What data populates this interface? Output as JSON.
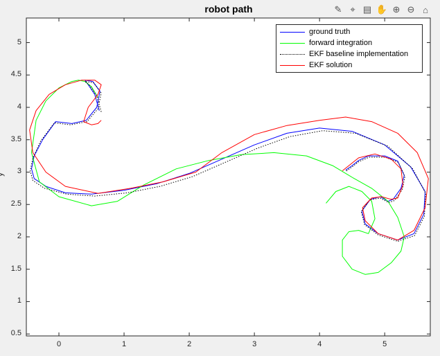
{
  "window": {
    "title": "robot path"
  },
  "toolbar": {
    "icons": [
      "edit-icon",
      "data-cursor-icon",
      "brush-icon",
      "pan-icon",
      "zoom-in-icon",
      "zoom-out-icon",
      "home-icon"
    ]
  },
  "chart_data": {
    "type": "line",
    "title": "robot path",
    "xlabel": "",
    "ylabel": "y",
    "xlim": [
      -0.5,
      5.7
    ],
    "ylim": [
      0.47,
      5.38
    ],
    "xticks": [
      "0",
      "1",
      "2",
      "3",
      "4",
      "5"
    ],
    "yticks": [
      "0.5",
      "1",
      "1.5",
      "2",
      "2.5",
      "3",
      "3.5",
      "4",
      "4.5",
      "5"
    ],
    "legend_position": "top-right",
    "grid": false,
    "series": [
      {
        "name": "ground truth",
        "color": "#0000ff",
        "style": "solid",
        "x": [
          0.62,
          0.55,
          0.45,
          0.4,
          0.52,
          0.63,
          0.58,
          0.42,
          0.2,
          -0.05,
          -0.25,
          -0.38,
          -0.42,
          -0.38,
          -0.2,
          0.1,
          0.5,
          1.0,
          1.5,
          2.0,
          2.5,
          3.0,
          3.5,
          4.0,
          4.5,
          5.0,
          5.4,
          5.62,
          5.6,
          5.45,
          5.2,
          4.9,
          4.7,
          4.65,
          4.78,
          4.93,
          5.05,
          5.13,
          5.25,
          5.3,
          5.2,
          5.0,
          4.75,
          4.6,
          4.5,
          4.4
        ],
        "y": [
          3.95,
          4.2,
          4.35,
          4.42,
          4.4,
          4.25,
          4.0,
          3.8,
          3.75,
          3.78,
          3.5,
          3.25,
          3.05,
          2.9,
          2.78,
          2.68,
          2.66,
          2.72,
          2.82,
          2.98,
          3.2,
          3.42,
          3.6,
          3.68,
          3.63,
          3.42,
          3.08,
          2.7,
          2.35,
          2.05,
          1.95,
          2.05,
          2.2,
          2.4,
          2.58,
          2.62,
          2.55,
          2.58,
          2.75,
          2.95,
          3.17,
          3.25,
          3.25,
          3.18,
          3.1,
          3.03
        ]
      },
      {
        "name": "forward integration",
        "color": "#00ff00",
        "style": "solid",
        "x": [
          0.6,
          0.5,
          0.4,
          0.3,
          0.2,
          0.0,
          -0.2,
          -0.35,
          -0.42,
          -0.3,
          0.0,
          0.5,
          0.9,
          1.3,
          1.8,
          2.3,
          2.8,
          3.3,
          3.8,
          4.2,
          4.5,
          4.8,
          5.05,
          5.2,
          5.3,
          5.25,
          5.1,
          4.9,
          4.7,
          4.5,
          4.35,
          4.35,
          4.45,
          4.6,
          4.75,
          4.85,
          4.8,
          4.65,
          4.45,
          4.25,
          4.1
        ],
        "y": [
          4.15,
          4.32,
          4.4,
          4.42,
          4.4,
          4.3,
          4.1,
          3.8,
          3.3,
          2.85,
          2.62,
          2.48,
          2.55,
          2.8,
          3.05,
          3.18,
          3.27,
          3.3,
          3.25,
          3.1,
          2.92,
          2.75,
          2.55,
          2.3,
          2.0,
          1.78,
          1.6,
          1.45,
          1.42,
          1.5,
          1.7,
          1.95,
          2.08,
          2.1,
          2.05,
          2.28,
          2.55,
          2.7,
          2.78,
          2.7,
          2.52
        ]
      },
      {
        "name": "EKF baseline implementation",
        "color": "#000000",
        "style": "dotted",
        "x": [
          0.65,
          0.58,
          0.47,
          0.4,
          0.53,
          0.65,
          0.6,
          0.43,
          0.18,
          -0.07,
          -0.28,
          -0.4,
          -0.44,
          -0.4,
          -0.22,
          0.12,
          0.55,
          1.05,
          1.55,
          2.05,
          2.55,
          3.05,
          3.55,
          4.05,
          4.55,
          5.05,
          5.43,
          5.63,
          5.61,
          5.46,
          5.2,
          4.9,
          4.69,
          4.64,
          4.77,
          4.93,
          5.06,
          5.15,
          5.27,
          5.31,
          5.21,
          5.01,
          4.76,
          4.6,
          4.5,
          4.4
        ],
        "y": [
          3.93,
          4.18,
          4.34,
          4.4,
          4.38,
          4.22,
          3.98,
          3.78,
          3.73,
          3.76,
          3.48,
          3.22,
          3.02,
          2.87,
          2.75,
          2.66,
          2.63,
          2.68,
          2.78,
          2.93,
          3.15,
          3.37,
          3.55,
          3.64,
          3.6,
          3.4,
          3.05,
          2.67,
          2.32,
          2.02,
          1.93,
          2.03,
          2.19,
          2.39,
          2.57,
          2.6,
          2.53,
          2.56,
          2.73,
          2.93,
          3.15,
          3.23,
          3.23,
          3.16,
          3.08,
          3.01
        ]
      },
      {
        "name": "EKF solution",
        "color": "#ff0000",
        "style": "solid",
        "x": [
          0.65,
          0.6,
          0.5,
          0.38,
          0.45,
          0.6,
          0.65,
          0.55,
          0.35,
          0.1,
          -0.15,
          -0.35,
          -0.45,
          -0.4,
          -0.2,
          0.1,
          0.6,
          1.1,
          1.6,
          2.1,
          2.5,
          3.0,
          3.5,
          4.0,
          4.4,
          4.8,
          5.2,
          5.5,
          5.67,
          5.62,
          5.45,
          5.2,
          4.9,
          4.7,
          4.66,
          4.8,
          4.95,
          5.1,
          5.2,
          5.28,
          5.25,
          5.1,
          4.85,
          4.6,
          4.45,
          4.35
        ],
        "y": [
          3.8,
          3.75,
          3.73,
          3.78,
          4.0,
          4.2,
          4.35,
          4.42,
          4.42,
          4.35,
          4.2,
          3.95,
          3.65,
          3.3,
          3.0,
          2.78,
          2.67,
          2.75,
          2.85,
          3.0,
          3.3,
          3.58,
          3.72,
          3.8,
          3.85,
          3.78,
          3.6,
          3.3,
          2.9,
          2.45,
          2.1,
          1.95,
          2.05,
          2.25,
          2.45,
          2.6,
          2.62,
          2.58,
          2.6,
          2.8,
          3.05,
          3.2,
          3.28,
          3.22,
          3.1,
          3.02
        ]
      }
    ]
  }
}
